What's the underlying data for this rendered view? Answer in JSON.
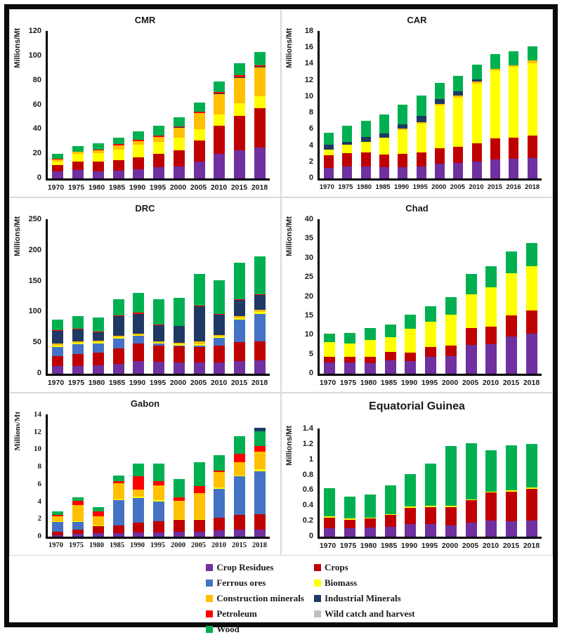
{
  "figure": {
    "background": "#ffffff",
    "border_color": "#0a0a0a"
  },
  "colors": {
    "Crop Residues": "#7030A0",
    "Crops": "#C00000",
    "Ferrous ores": "#4472C4",
    "Biomass": "#FFFF00",
    "Construction minerals": "#FFC000",
    "Industrial Minerals": "#1F3864",
    "Petroleum": "#FF0000",
    "Wild catch and harvest": "#BFBFBF",
    "Wood": "#00B050"
  },
  "legend": {
    "rows": [
      [
        "Crop Residues",
        "Crops"
      ],
      [
        "Ferrous ores",
        "Biomass"
      ],
      [
        "Construction minerals",
        "Industrial Minerals"
      ],
      [
        "Petroleum",
        "Wild catch and harvest"
      ],
      [
        "Wood"
      ]
    ]
  },
  "chart_data": [
    {
      "type": "bar",
      "stacked": true,
      "title": "CMR",
      "ylabel": "Millions/Mt",
      "ylim": [
        0,
        120
      ],
      "ystep": 20,
      "grid": false,
      "categories": [
        "1970",
        "1975",
        "1980",
        "1985",
        "1990",
        "1995",
        "2000",
        "2005",
        "2010",
        "2015",
        "2018"
      ],
      "series": [
        {
          "name": "Crop Residues",
          "values": [
            5.5,
            7,
            6,
            6.5,
            7.5,
            9,
            10,
            14,
            20,
            23,
            25
          ]
        },
        {
          "name": "Crops",
          "values": [
            5.5,
            7,
            7.5,
            8.5,
            9.5,
            11,
            13,
            17,
            23,
            28,
            32
          ]
        },
        {
          "name": "Biomass",
          "values": [
            3,
            6,
            7,
            8.5,
            10.5,
            9.5,
            10,
            9,
            9,
            10,
            10
          ]
        },
        {
          "name": "Construction minerals",
          "values": [
            1.5,
            1.5,
            2.5,
            3.5,
            3,
            4.5,
            8,
            13,
            16.5,
            21,
            23.5
          ]
        },
        {
          "name": "Industrial Minerals",
          "values": [
            0,
            0,
            0,
            0,
            0,
            0,
            0.5,
            0,
            0.5,
            0.5,
            0.5
          ]
        },
        {
          "name": "Petroleum",
          "values": [
            0.5,
            0.5,
            0.5,
            1,
            1,
            1,
            1,
            1.5,
            1.5,
            1.5,
            1
          ]
        },
        {
          "name": "Wood",
          "values": [
            4,
            4.5,
            5,
            5,
            7,
            8,
            7.5,
            7.5,
            8.5,
            10,
            11
          ]
        }
      ]
    },
    {
      "type": "bar",
      "stacked": true,
      "title": "CAR",
      "ylabel": "Millions/Mt",
      "ylim": [
        0,
        18
      ],
      "ystep": 2,
      "grid": false,
      "categories": [
        "1970",
        "1975",
        "1980",
        "1985",
        "1990",
        "1995",
        "2000",
        "2005",
        "2010",
        "2015",
        "2016",
        "2018"
      ],
      "series": [
        {
          "name": "Crop Residues",
          "values": [
            1.3,
            1.5,
            1.5,
            1.4,
            1.4,
            1.5,
            1.8,
            1.9,
            2.1,
            2.3,
            2.4,
            2.5
          ]
        },
        {
          "name": "Crops",
          "values": [
            1.5,
            1.6,
            1.7,
            1.5,
            1.6,
            1.7,
            1.9,
            2.0,
            2.2,
            2.6,
            2.6,
            2.7
          ]
        },
        {
          "name": "Biomass",
          "values": [
            0.7,
            1.0,
            1.3,
            2.1,
            2.9,
            3.5,
            5.2,
            6.0,
            7.3,
            8.3,
            8.6,
            8.9
          ]
        },
        {
          "name": "Construction minerals",
          "values": [
            0,
            0,
            0,
            0,
            0.2,
            0.2,
            0.2,
            0.2,
            0.2,
            0.2,
            0.2,
            0.3
          ]
        },
        {
          "name": "Industrial Minerals",
          "values": [
            0.6,
            0.4,
            0.6,
            0.5,
            0.5,
            0.7,
            0.6,
            0.5,
            0.3,
            0,
            0,
            0
          ]
        },
        {
          "name": "Wood",
          "values": [
            1.5,
            1.9,
            1.9,
            2.3,
            2.4,
            2.5,
            2.0,
            1.9,
            1.8,
            1.8,
            1.7,
            1.7
          ]
        }
      ]
    },
    {
      "type": "bar",
      "stacked": true,
      "title": "DRC",
      "ylabel": "Millions/Mt",
      "ylim": [
        0,
        250
      ],
      "ystep": 50,
      "grid": false,
      "categories": [
        "1970",
        "1975",
        "1980",
        "1985",
        "1990",
        "1995",
        "2000",
        "2005",
        "2010",
        "2015",
        "2018"
      ],
      "series": [
        {
          "name": "Crop Residues",
          "values": [
            12,
            13,
            14,
            16,
            20,
            19,
            18,
            18,
            18,
            21,
            22
          ]
        },
        {
          "name": "Crops",
          "values": [
            17,
            19,
            20,
            25,
            29,
            27,
            26,
            25,
            27,
            30,
            30
          ]
        },
        {
          "name": "Ferrous ores",
          "values": [
            14,
            16,
            15,
            16,
            12,
            3,
            2,
            3,
            13,
            37,
            45
          ]
        },
        {
          "name": "Biomass",
          "values": [
            3,
            2,
            2,
            2,
            2,
            1.5,
            2,
            2,
            2,
            2,
            3
          ]
        },
        {
          "name": "Construction minerals",
          "values": [
            3,
            2,
            2,
            2,
            2,
            2,
            2,
            4,
            3,
            3,
            3
          ]
        },
        {
          "name": "Industrial Minerals",
          "values": [
            20,
            20,
            14,
            32,
            32,
            26,
            27,
            57,
            32,
            26,
            24
          ]
        },
        {
          "name": "Petroleum",
          "values": [
            1.5,
            1,
            1,
            1,
            2,
            1,
            0.5,
            1,
            1.5,
            2,
            2
          ]
        },
        {
          "name": "Wood",
          "values": [
            17.5,
            20,
            23,
            27,
            32,
            41.5,
            45.5,
            51,
            54.5,
            59,
            61
          ]
        }
      ]
    },
    {
      "type": "bar",
      "stacked": true,
      "title": "Chad",
      "ylabel": "Millions/Mt",
      "ylim": [
        0,
        40
      ],
      "ystep": 5,
      "grid": false,
      "categories": [
        "1970",
        "1975",
        "1980",
        "1985",
        "1990",
        "1995",
        "2000",
        "2005",
        "2010",
        "2015",
        "2018"
      ],
      "series": [
        {
          "name": "Crop Residues",
          "values": [
            2.9,
            2.9,
            2.7,
            3.4,
            3.2,
            4.3,
            4.5,
            7.5,
            7.6,
            9.6,
            10.4
          ]
        },
        {
          "name": "Crops",
          "values": [
            1.5,
            1.5,
            1.6,
            2.2,
            2.3,
            2.6,
            2.8,
            4.3,
            4.5,
            5.5,
            5.9
          ]
        },
        {
          "name": "Biomass",
          "values": [
            3.7,
            3.4,
            4.4,
            3.9,
            6.2,
            6.6,
            7.9,
            8.8,
            10.3,
            10.9,
            11.6
          ]
        },
        {
          "name": "Wood",
          "values": [
            2.3,
            2.7,
            3.2,
            3.2,
            3.6,
            4.0,
            4.6,
            5.2,
            5.4,
            5.7,
            5.9
          ]
        }
      ]
    },
    {
      "type": "bar",
      "stacked": true,
      "title": "Gabon",
      "ylabel": "Millions/Mt",
      "ylim": [
        0,
        14
      ],
      "ystep": 2,
      "grid": false,
      "categories": [
        "1970",
        "1975",
        "1980",
        "1985",
        "1990",
        "1995",
        "2000",
        "2005",
        "2010",
        "2015",
        "2018"
      ],
      "series": [
        {
          "name": "Crop Residues",
          "values": [
            0.2,
            0.3,
            0.4,
            0.4,
            0.5,
            0.5,
            0.6,
            0.6,
            0.7,
            0.8,
            0.8
          ]
        },
        {
          "name": "Crops",
          "values": [
            0.4,
            0.5,
            0.8,
            0.9,
            1.1,
            1.3,
            1.3,
            1.3,
            1.5,
            1.7,
            1.8
          ]
        },
        {
          "name": "Ferrous ores",
          "values": [
            1.1,
            0.9,
            0,
            2.9,
            2.8,
            2.2,
            0,
            0,
            3.3,
            4.4,
            4.9
          ]
        },
        {
          "name": "Biomass",
          "values": [
            0.1,
            0.1,
            0.1,
            0.1,
            0.2,
            0.15,
            0.1,
            0.15,
            0.1,
            0.1,
            0.2
          ]
        },
        {
          "name": "Construction minerals",
          "values": [
            0.5,
            1.8,
            1.0,
            1.8,
            0.8,
            1.75,
            2.1,
            2.95,
            1.8,
            1.5,
            2.0
          ]
        },
        {
          "name": "Petroleum",
          "values": [
            0.2,
            0.5,
            0.6,
            0.3,
            1.5,
            0.5,
            0.4,
            0.8,
            0.2,
            1.0,
            0.7
          ]
        },
        {
          "name": "Wood",
          "values": [
            0.4,
            0.4,
            0.5,
            0.6,
            1.5,
            2.0,
            2.1,
            2.7,
            1.7,
            2.0,
            1.7
          ]
        },
        {
          "name": "Industrial Minerals",
          "values": [
            0,
            0,
            0,
            0,
            0,
            0,
            0,
            0,
            0,
            0,
            0.4
          ]
        }
      ]
    },
    {
      "type": "bar",
      "stacked": true,
      "title": "Equatorial Guinea",
      "ylabel": "Millions/Mt",
      "ylim": [
        0,
        1.4
      ],
      "ystep": 0.2,
      "grid": false,
      "categories": [
        "1970",
        "1975",
        "1980",
        "1985",
        "1990",
        "1995",
        "2000",
        "2005",
        "2010",
        "2015",
        "2018"
      ],
      "series": [
        {
          "name": "Crop Residues",
          "values": [
            0.11,
            0.11,
            0.12,
            0.13,
            0.16,
            0.16,
            0.15,
            0.18,
            0.21,
            0.2,
            0.21
          ]
        },
        {
          "name": "Crops",
          "values": [
            0.14,
            0.11,
            0.12,
            0.15,
            0.21,
            0.22,
            0.23,
            0.29,
            0.36,
            0.38,
            0.41
          ]
        },
        {
          "name": "Biomass",
          "values": [
            0.01,
            0.02,
            0.01,
            0.01,
            0.02,
            0.02,
            0.02,
            0.01,
            0.01,
            0.02,
            0.02
          ]
        },
        {
          "name": "Wood",
          "values": [
            0.37,
            0.28,
            0.3,
            0.37,
            0.42,
            0.55,
            0.77,
            0.73,
            0.54,
            0.58,
            0.56
          ]
        }
      ]
    }
  ]
}
